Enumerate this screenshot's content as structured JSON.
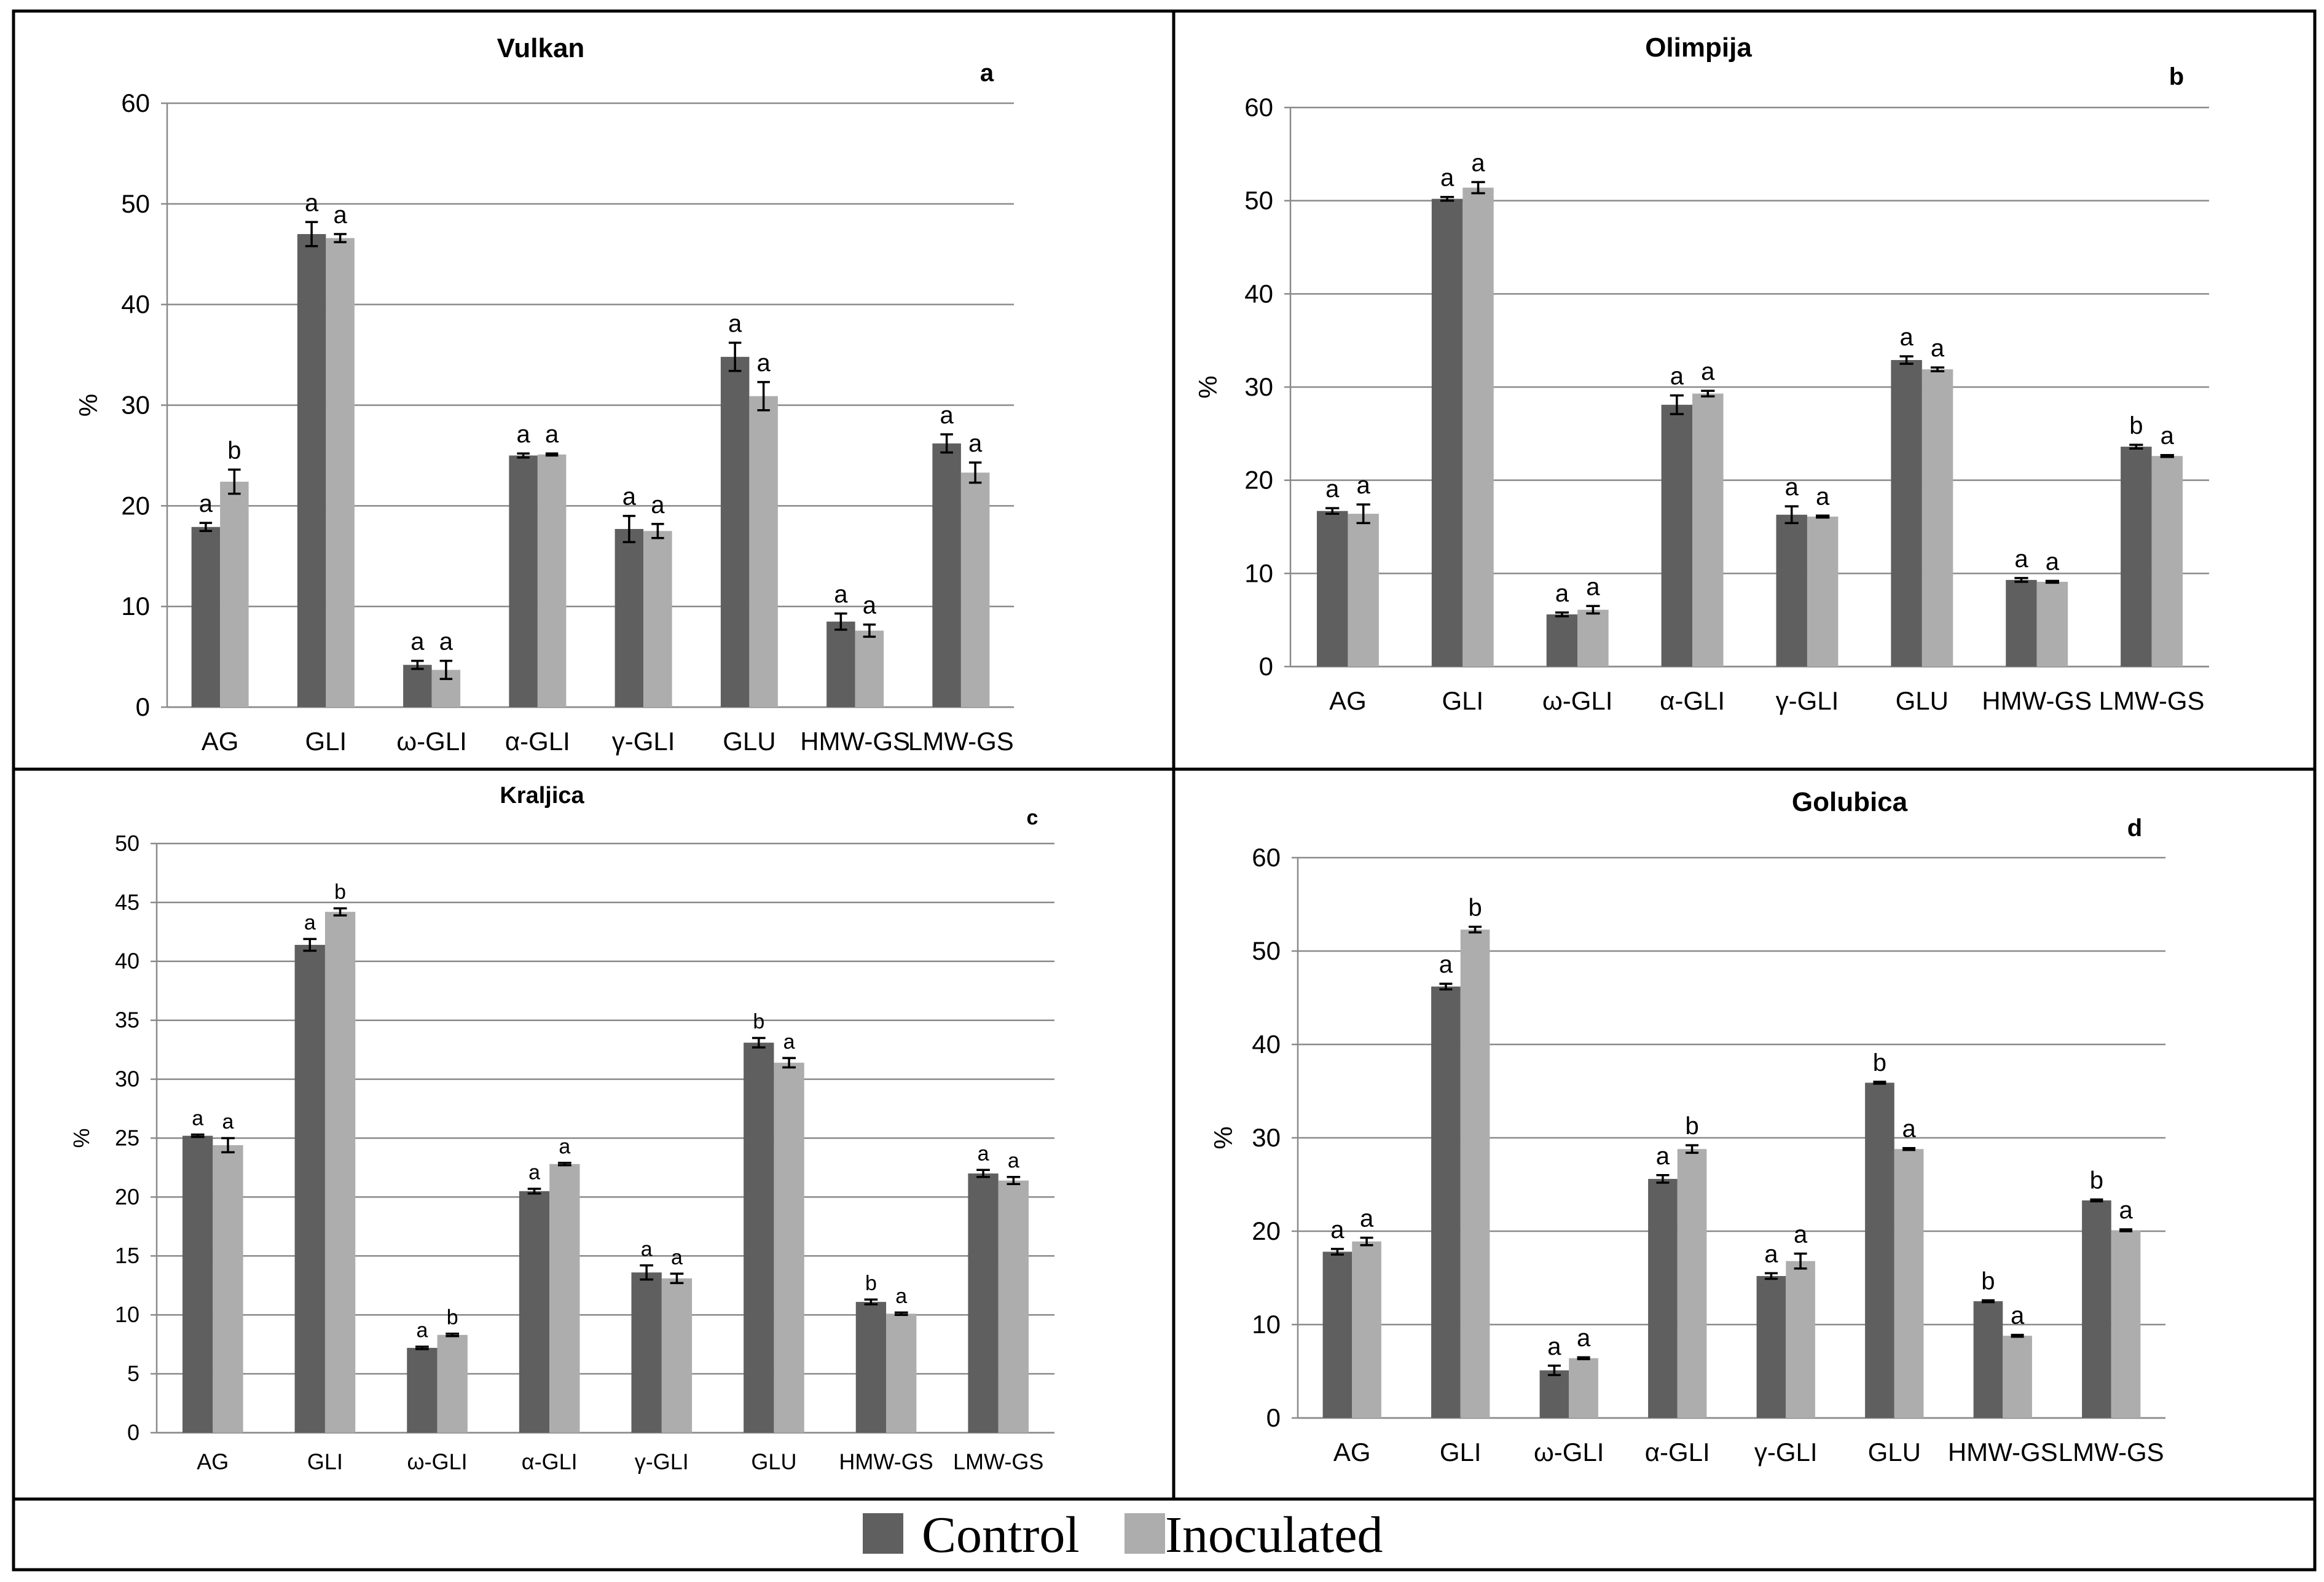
{
  "chart_data": [
    {
      "type": "bar",
      "title": "Vulkan",
      "panel_label": "a",
      "ylabel": "%",
      "xlabel": "",
      "ylim": [
        0,
        60
      ],
      "yticks": [
        0,
        10,
        20,
        30,
        40,
        50,
        60
      ],
      "categories": [
        "AG",
        "GLI",
        "ω-GLI",
        "α-GLI",
        "γ-GLI",
        "GLU",
        "HMW-GS",
        "LMW-GS"
      ],
      "series": [
        {
          "name": "Control",
          "values": [
            17.9,
            47.0,
            4.2,
            25.0,
            17.7,
            34.8,
            8.5,
            26.2
          ],
          "errors": [
            0.4,
            1.2,
            0.4,
            0.2,
            1.3,
            1.4,
            0.8,
            0.9
          ],
          "letters": [
            "a",
            "a",
            "a",
            "a",
            "a",
            "a",
            "a",
            "a"
          ]
        },
        {
          "name": "Inoculated",
          "values": [
            22.4,
            46.6,
            3.7,
            25.1,
            17.5,
            30.9,
            7.6,
            23.3
          ],
          "errors": [
            1.2,
            0.4,
            0.9,
            0.1,
            0.7,
            1.4,
            0.6,
            1.0
          ],
          "letters": [
            "b",
            "a",
            "a",
            "a",
            "a",
            "a",
            "a",
            "a"
          ]
        }
      ]
    },
    {
      "type": "bar",
      "title": "Olimpija",
      "panel_label": "b",
      "ylabel": "%",
      "xlabel": "",
      "ylim": [
        0,
        60
      ],
      "yticks": [
        0,
        10,
        20,
        30,
        40,
        50,
        60
      ],
      "categories": [
        "AG",
        "GLI",
        "ω-GLI",
        "α-GLI",
        "γ-GLI",
        "GLU",
        "HMW-GS",
        "LMW-GS"
      ],
      "series": [
        {
          "name": "Control",
          "values": [
            16.7,
            50.2,
            5.6,
            28.1,
            16.3,
            32.9,
            9.3,
            23.6
          ],
          "errors": [
            0.3,
            0.2,
            0.2,
            1.0,
            0.9,
            0.4,
            0.2,
            0.2
          ],
          "letters": [
            "a",
            "a",
            "a",
            "a",
            "a",
            "a",
            "a",
            "b"
          ]
        },
        {
          "name": "Inoculated",
          "values": [
            16.4,
            51.4,
            6.1,
            29.3,
            16.1,
            31.9,
            9.1,
            22.6
          ],
          "errors": [
            1.0,
            0.6,
            0.4,
            0.3,
            0.1,
            0.2,
            0.1,
            0.1
          ],
          "letters": [
            "a",
            "a",
            "a",
            "a",
            "a",
            "a",
            "a",
            "a"
          ]
        }
      ]
    },
    {
      "type": "bar",
      "title": "Kraljica",
      "panel_label": "c",
      "ylabel": "%",
      "xlabel": "",
      "ylim": [
        0,
        50
      ],
      "yticks": [
        0,
        5,
        10,
        15,
        20,
        25,
        30,
        35,
        40,
        45,
        50
      ],
      "categories": [
        "AG",
        "GLI",
        "ω-GLI",
        "α-GLI",
        "γ-GLI",
        "GLU",
        "HMW-GS",
        "LMW-GS"
      ],
      "series": [
        {
          "name": "Control",
          "values": [
            25.2,
            41.4,
            7.2,
            20.5,
            13.6,
            33.1,
            11.1,
            22.0
          ],
          "errors": [
            0.1,
            0.5,
            0.1,
            0.2,
            0.6,
            0.4,
            0.2,
            0.3
          ],
          "letters": [
            "a",
            "a",
            "a",
            "a",
            "a",
            "b",
            "b",
            "a"
          ]
        },
        {
          "name": "Inoculated",
          "values": [
            24.4,
            44.2,
            8.3,
            22.8,
            13.1,
            31.4,
            10.1,
            21.4
          ],
          "errors": [
            0.6,
            0.3,
            0.1,
            0.1,
            0.4,
            0.4,
            0.1,
            0.3
          ],
          "letters": [
            "a",
            "b",
            "b",
            "a",
            "a",
            "a",
            "a",
            "a"
          ]
        }
      ]
    },
    {
      "type": "bar",
      "title": "Golubica",
      "panel_label": "d",
      "ylabel": "%",
      "xlabel": "",
      "ylim": [
        0,
        60
      ],
      "yticks": [
        0,
        10,
        20,
        30,
        40,
        50,
        60
      ],
      "categories": [
        "AG",
        "GLI",
        "ω-GLI",
        "α-GLI",
        "γ-GLI",
        "GLU",
        "HMW-GS",
        "LMW-GS"
      ],
      "series": [
        {
          "name": "Control",
          "values": [
            17.8,
            46.2,
            5.1,
            25.6,
            15.2,
            35.9,
            12.5,
            23.3
          ],
          "errors": [
            0.3,
            0.3,
            0.5,
            0.4,
            0.3,
            0.1,
            0.1,
            0.1
          ],
          "letters": [
            "a",
            "a",
            "a",
            "a",
            "a",
            "b",
            "b",
            "b"
          ]
        },
        {
          "name": "Inoculated",
          "values": [
            18.9,
            52.3,
            6.4,
            28.8,
            16.8,
            28.8,
            8.8,
            20.1
          ],
          "errors": [
            0.4,
            0.3,
            0.1,
            0.4,
            0.8,
            0.1,
            0.1,
            0.1
          ],
          "letters": [
            "a",
            "b",
            "a",
            "b",
            "a",
            "a",
            "a",
            "a"
          ]
        }
      ]
    }
  ],
  "legend": {
    "entries": [
      {
        "label": "Control",
        "color": "#5f5f5f"
      },
      {
        "label": "Inoculated",
        "color": "#adadad"
      }
    ]
  },
  "colors": {
    "control": "#5f5f5f",
    "inoculated": "#adadad",
    "gridline": "#8a8a8a",
    "border": "#000000",
    "text": "#000000"
  }
}
